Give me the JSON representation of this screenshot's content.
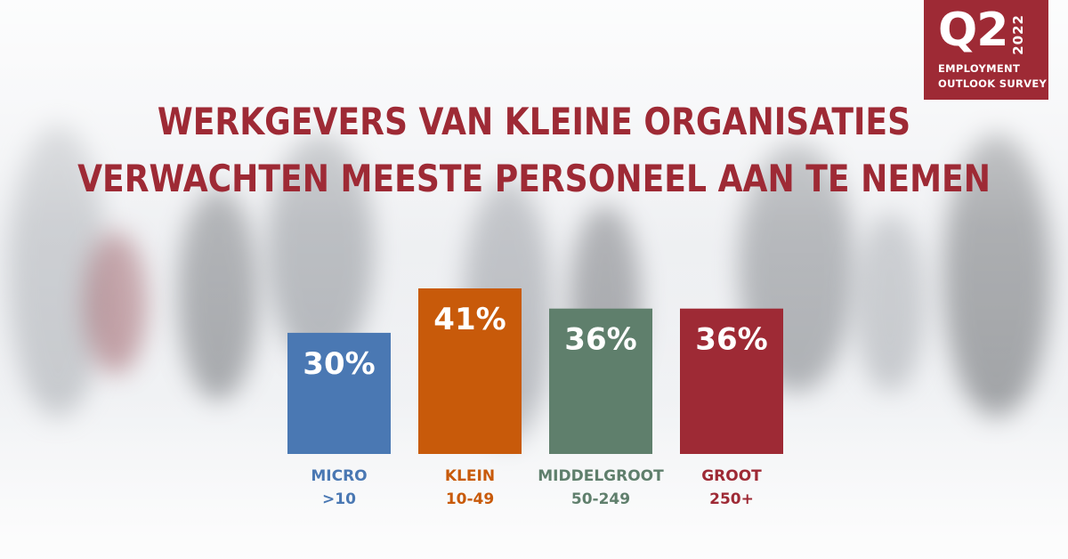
{
  "badge": {
    "quarter": "Q2",
    "year": "2022",
    "line1": "EMPLOYMENT",
    "line2": "OUTLOOK SURVEY",
    "color": "#9e2a35"
  },
  "title": {
    "line1": "WERKGEVERS VAN KLEINE ORGANISATIES",
    "line2": "VERWACHTEN MEESTE PERSONEEL AAN TE NEMEN",
    "color": "#9e2a35"
  },
  "chart_data": {
    "type": "bar",
    "categories": [
      "MICRO",
      "KLEIN",
      "MIDDELGROOT",
      "GROOT"
    ],
    "sublabels": [
      ">10",
      "10-49",
      "50-249",
      "250+"
    ],
    "values": [
      30,
      41,
      36,
      36
    ],
    "value_labels": [
      "30%",
      "41%",
      "36%",
      "36%"
    ],
    "colors": [
      "#4a78b3",
      "#c85a0a",
      "#5f7f6c",
      "#9e2a35"
    ],
    "ylim": [
      0,
      41
    ],
    "grid": false
  }
}
